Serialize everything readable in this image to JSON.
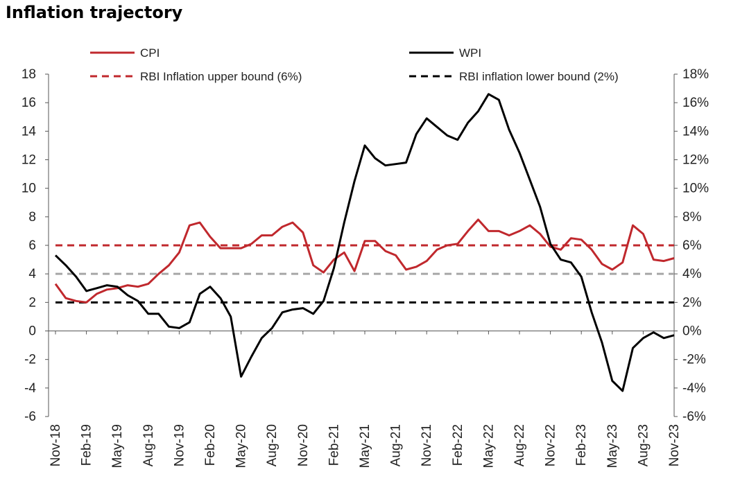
{
  "chart_data": {
    "type": "line",
    "title": "Inflation trajectory",
    "x_labels": [
      "Nov-18",
      "Feb-19",
      "May-19",
      "Aug-19",
      "Nov-19",
      "Feb-20",
      "May-20",
      "Aug-20",
      "Nov-20",
      "Feb-21",
      "May-21",
      "Aug-21",
      "Nov-21",
      "Feb-22",
      "May-22",
      "Aug-22",
      "Nov-22",
      "Feb-23",
      "May-23",
      "Aug-23",
      "Nov-23"
    ],
    "x_months": [
      "Nov-18",
      "Dec-18",
      "Jan-19",
      "Feb-19",
      "Mar-19",
      "Apr-19",
      "May-19",
      "Jun-19",
      "Jul-19",
      "Aug-19",
      "Sep-19",
      "Oct-19",
      "Nov-19",
      "Dec-19",
      "Jan-20",
      "Feb-20",
      "Mar-20",
      "Apr-20",
      "May-20",
      "Jun-20",
      "Jul-20",
      "Aug-20",
      "Sep-20",
      "Oct-20",
      "Nov-20",
      "Dec-20",
      "Jan-21",
      "Feb-21",
      "Mar-21",
      "Apr-21",
      "May-21",
      "Jun-21",
      "Jul-21",
      "Aug-21",
      "Sep-21",
      "Oct-21",
      "Nov-21",
      "Dec-21",
      "Jan-22",
      "Feb-22",
      "Mar-22",
      "Apr-22",
      "May-22",
      "Jun-22",
      "Jul-22",
      "Aug-22",
      "Sep-22",
      "Oct-22",
      "Nov-22",
      "Dec-22",
      "Jan-23",
      "Feb-23",
      "Mar-23",
      "Apr-23",
      "May-23",
      "Jun-23",
      "Jul-23",
      "Aug-23",
      "Sep-23",
      "Oct-23",
      "Nov-23"
    ],
    "y_left": {
      "min": -6,
      "max": 18,
      "step": 2,
      "ticks": [
        "-6",
        "-4",
        "-2",
        "0",
        "2",
        "4",
        "6",
        "8",
        "10",
        "12",
        "14",
        "16",
        "18"
      ]
    },
    "y_right": {
      "min": -6,
      "max": 18,
      "step": 2,
      "ticks": [
        "-6%",
        "-4%",
        "-2%",
        "0%",
        "2%",
        "4%",
        "6%",
        "8%",
        "10%",
        "12%",
        "14%",
        "16%",
        "18%"
      ]
    },
    "series": [
      {
        "name": "CPI",
        "color": "#c0282d",
        "style": "solid",
        "values": [
          3.3,
          2.3,
          2.1,
          2.0,
          2.6,
          2.9,
          3.0,
          3.2,
          3.1,
          3.3,
          4.0,
          4.6,
          5.5,
          7.4,
          7.6,
          6.6,
          5.8,
          5.8,
          5.8,
          6.1,
          6.7,
          6.7,
          7.3,
          7.6,
          6.9,
          4.6,
          4.1,
          5.0,
          5.5,
          4.2,
          6.3,
          6.3,
          5.6,
          5.3,
          4.3,
          4.5,
          4.9,
          5.7,
          6.0,
          6.1,
          7.0,
          7.8,
          7.0,
          7.0,
          6.7,
          7.0,
          7.4,
          6.8,
          5.9,
          5.7,
          6.5,
          6.4,
          5.7,
          4.7,
          4.3,
          4.8,
          7.4,
          6.8,
          5.0,
          4.9,
          5.1
        ]
      },
      {
        "name": "WPI",
        "color": "#000000",
        "style": "solid",
        "values": [
          5.3,
          4.6,
          3.8,
          2.8,
          3.0,
          3.2,
          3.1,
          2.5,
          2.1,
          1.2,
          1.2,
          0.3,
          0.2,
          0.6,
          2.6,
          3.1,
          2.3,
          1.0,
          -3.2,
          -1.8,
          -0.5,
          0.2,
          1.3,
          1.5,
          1.6,
          1.2,
          2.1,
          4.4,
          7.6,
          10.5,
          13.0,
          12.1,
          11.6,
          11.7,
          11.8,
          13.8,
          14.9,
          14.3,
          13.7,
          13.4,
          14.6,
          15.4,
          16.6,
          16.2,
          14.1,
          12.5,
          10.6,
          8.7,
          6.1,
          5.0,
          4.8,
          3.8,
          1.3,
          -0.8,
          -3.5,
          -4.2,
          -1.2,
          -0.5,
          -0.1,
          -0.5,
          -0.3
        ]
      },
      {
        "name": "RBI Inflation upper bound (6%)",
        "color": "#c0282d",
        "style": "dashed",
        "value": 6
      },
      {
        "name": "RBI inflation lower bound (2%)",
        "color": "#000000",
        "style": "dashed",
        "value": 2
      },
      {
        "name": "",
        "color": "#a6a6a6",
        "style": "dashed",
        "value": 4
      }
    ],
    "legend": {
      "placement": "top"
    }
  }
}
